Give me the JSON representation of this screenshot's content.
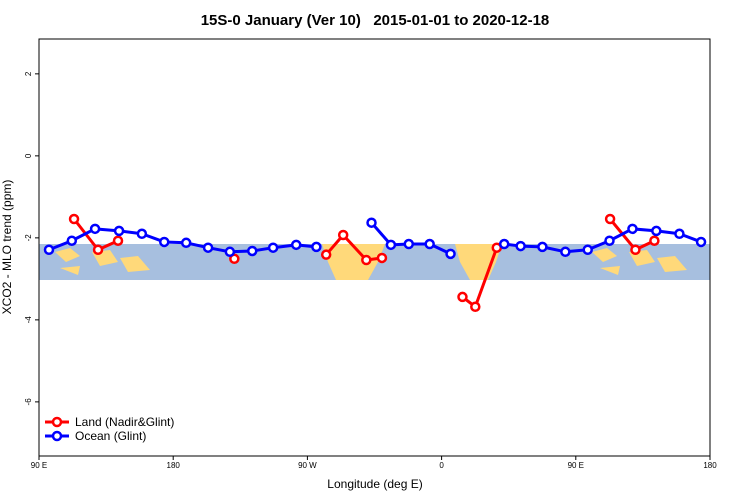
{
  "chart_data": {
    "type": "line",
    "title": "15S-0 January (Ver 10)   2015-01-01 to 2020-12-18",
    "x_label": "Longitude (deg E)",
    "y_label": "XCO2 - MLO trend (ppm)",
    "xlim": [
      90,
      540
    ],
    "ylim": [
      -7.32,
      2.85
    ],
    "xticks": [
      {
        "value": 90,
        "label": "90 E"
      },
      {
        "value": 180,
        "label": "180"
      },
      {
        "value": 270,
        "label": "90 W"
      },
      {
        "value": 360,
        "label": "0"
      },
      {
        "value": 450,
        "label": "90 E"
      },
      {
        "value": 540,
        "label": "180"
      }
    ],
    "yticks": [
      -6,
      -4,
      -2,
      0,
      2
    ],
    "legend": "bottom-left",
    "series": [
      {
        "name": "Land (Nadir&Glint)",
        "color": "#ff0000",
        "x": [
          113.5,
          129.6,
          143,
          null,
          221,
          null,
          282.6,
          294,
          309.5,
          320,
          null,
          374,
          382.6,
          397,
          null,
          473,
          490,
          502.7
        ],
        "values": [
          -1.54,
          -2.29,
          -2.07,
          null,
          -2.51,
          null,
          -2.41,
          -1.93,
          -2.54,
          -2.49,
          null,
          -3.44,
          -3.68,
          -2.24,
          null,
          -1.54,
          -2.29,
          -2.07
        ]
      },
      {
        "name": "Ocean (Glint)",
        "color": "#0000ff",
        "x": [
          96.7,
          112,
          127.6,
          143.7,
          159,
          174,
          188.7,
          203.4,
          218,
          233,
          247,
          262.5,
          276,
          null,
          313,
          326,
          338,
          352,
          366,
          null,
          402,
          413,
          427.6,
          443,
          458,
          472.6,
          488,
          504,
          519.5,
          534
        ],
        "values": [
          -2.29,
          -2.07,
          -1.78,
          -1.83,
          -1.9,
          -2.1,
          -2.12,
          -2.24,
          -2.34,
          -2.32,
          -2.24,
          -2.17,
          -2.22,
          null,
          -1.63,
          -2.17,
          -2.15,
          -2.15,
          -2.39,
          null,
          -2.15,
          -2.2,
          -2.22,
          -2.34,
          -2.29,
          -2.07,
          -1.78,
          -1.83,
          -1.9,
          -2.1
        ]
      }
    ]
  }
}
